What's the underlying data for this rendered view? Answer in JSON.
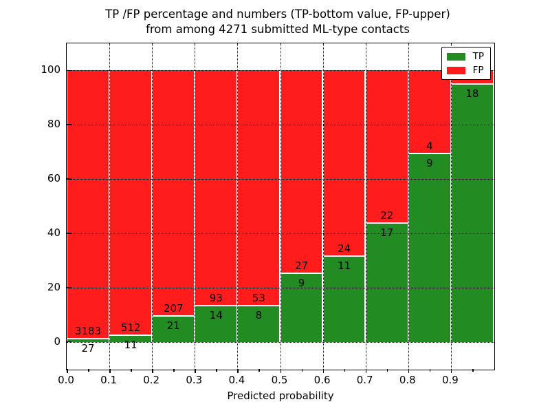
{
  "chart_data": {
    "type": "bar",
    "stacked": true,
    "grid": true,
    "legend_position": "upper right",
    "title": "TP /FP percentage and numbers (TP-bottom value, FP-upper) from among 4271 submitted ML-type contacts",
    "title_lines": [
      "TP /FP percentage and numbers (TP-bottom value, FP-upper)",
      "from among 4271 submitted ML-type contacts"
    ],
    "xlabel": "Predicted probability",
    "ylabel": "Percentage",
    "total_contacts": 4271,
    "xlim": [
      0.0,
      1.0
    ],
    "ylim": [
      -10,
      110
    ],
    "x_ticks": [
      {
        "label": "0.0",
        "value": 0.0
      },
      {
        "label": "0.1",
        "value": 0.1
      },
      {
        "label": "0.2",
        "value": 0.2
      },
      {
        "label": "0.3",
        "value": 0.3
      },
      {
        "label": "0.4",
        "value": 0.4
      },
      {
        "label": "0.5",
        "value": 0.5
      },
      {
        "label": "0.6",
        "value": 0.6
      },
      {
        "label": "0.7",
        "value": 0.7
      },
      {
        "label": "0.8",
        "value": 0.8
      },
      {
        "label": "0.9",
        "value": 0.9
      }
    ],
    "y_ticks": [
      {
        "label": "0",
        "value": 0
      },
      {
        "label": "20",
        "value": 20
      },
      {
        "label": "40",
        "value": 40
      },
      {
        "label": "60",
        "value": 60
      },
      {
        "label": "80",
        "value": 80
      },
      {
        "label": "100",
        "value": 100
      }
    ],
    "colors": {
      "tp": "#228b22",
      "fp": "#ff1c1c"
    },
    "legend": [
      {
        "label": "TP",
        "color": "#228b22"
      },
      {
        "label": "FP",
        "color": "#ff1c1c"
      }
    ],
    "bins": [
      {
        "x_start": 0.0,
        "x_end": 0.1,
        "tp_label": "27",
        "fp_label": "3183",
        "tp_count": 27,
        "fp_count": 3183,
        "tp_percent": 0.84,
        "fp_percent": 99.16
      },
      {
        "x_start": 0.1,
        "x_end": 0.2,
        "tp_label": "11",
        "fp_label": "512",
        "tp_count": 11,
        "fp_count": 512,
        "tp_percent": 2.1,
        "fp_percent": 97.9
      },
      {
        "x_start": 0.2,
        "x_end": 0.3,
        "tp_label": "21",
        "fp_label": "207",
        "tp_count": 21,
        "fp_count": 207,
        "tp_percent": 9.21,
        "fp_percent": 90.79
      },
      {
        "x_start": 0.3,
        "x_end": 0.4,
        "tp_label": "14",
        "fp_label": "93",
        "tp_count": 14,
        "fp_count": 93,
        "tp_percent": 13.08,
        "fp_percent": 86.92
      },
      {
        "x_start": 0.4,
        "x_end": 0.5,
        "tp_label": "8",
        "fp_label": "53",
        "tp_count": 8,
        "fp_count": 53,
        "tp_percent": 13.11,
        "fp_percent": 86.89
      },
      {
        "x_start": 0.5,
        "x_end": 0.6,
        "tp_label": "9",
        "fp_label": "27",
        "tp_count": 9,
        "fp_count": 27,
        "tp_percent": 25.0,
        "fp_percent": 75.0
      },
      {
        "x_start": 0.6,
        "x_end": 0.7,
        "tp_label": "11",
        "fp_label": "24",
        "tp_count": 11,
        "fp_count": 24,
        "tp_percent": 31.43,
        "fp_percent": 68.57
      },
      {
        "x_start": 0.7,
        "x_end": 0.8,
        "tp_label": "17",
        "fp_label": "22",
        "tp_count": 17,
        "fp_count": 22,
        "tp_percent": 43.59,
        "fp_percent": 56.41
      },
      {
        "x_start": 0.8,
        "x_end": 0.9,
        "tp_label": "9",
        "fp_label": "4",
        "tp_count": 9,
        "fp_count": 4,
        "tp_percent": 69.23,
        "fp_percent": 30.77
      },
      {
        "x_start": 0.9,
        "x_end": 1.0,
        "tp_label": "18",
        "fp_label": null,
        "tp_count": 18,
        "fp_count": null,
        "tp_percent": 94.74,
        "fp_percent": 5.26
      }
    ]
  }
}
